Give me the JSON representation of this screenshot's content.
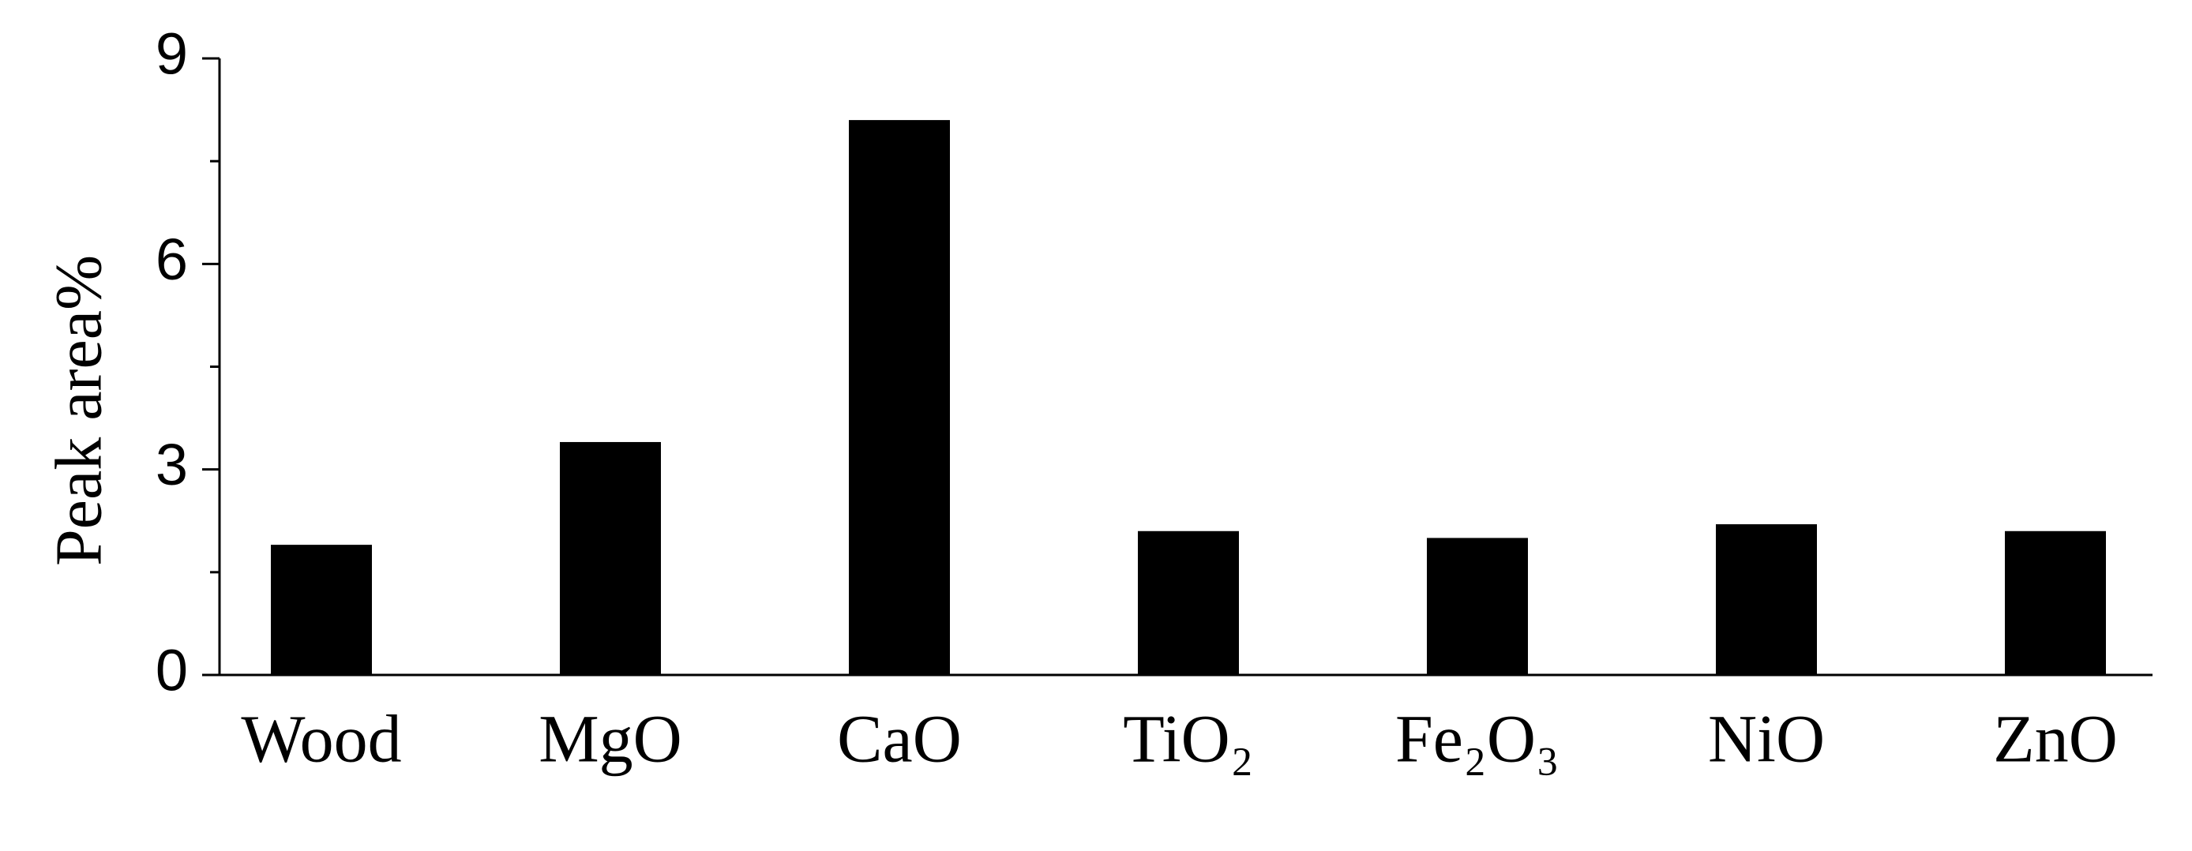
{
  "chart_data": {
    "type": "bar",
    "y_label": "Peak area%",
    "categories": [
      "Wood",
      "MgO",
      "CaO",
      "TiO₂",
      "Fe₂O₃",
      "NiO",
      "ZnO"
    ],
    "values": [
      1.9,
      3.4,
      8.1,
      2.1,
      2.0,
      2.2,
      2.1
    ],
    "color": "#000000",
    "ylim": [
      0,
      9
    ],
    "yticks": [
      0,
      3,
      6,
      9
    ],
    "minor_yticks": [
      1.5,
      4.5,
      7.5
    ]
  }
}
